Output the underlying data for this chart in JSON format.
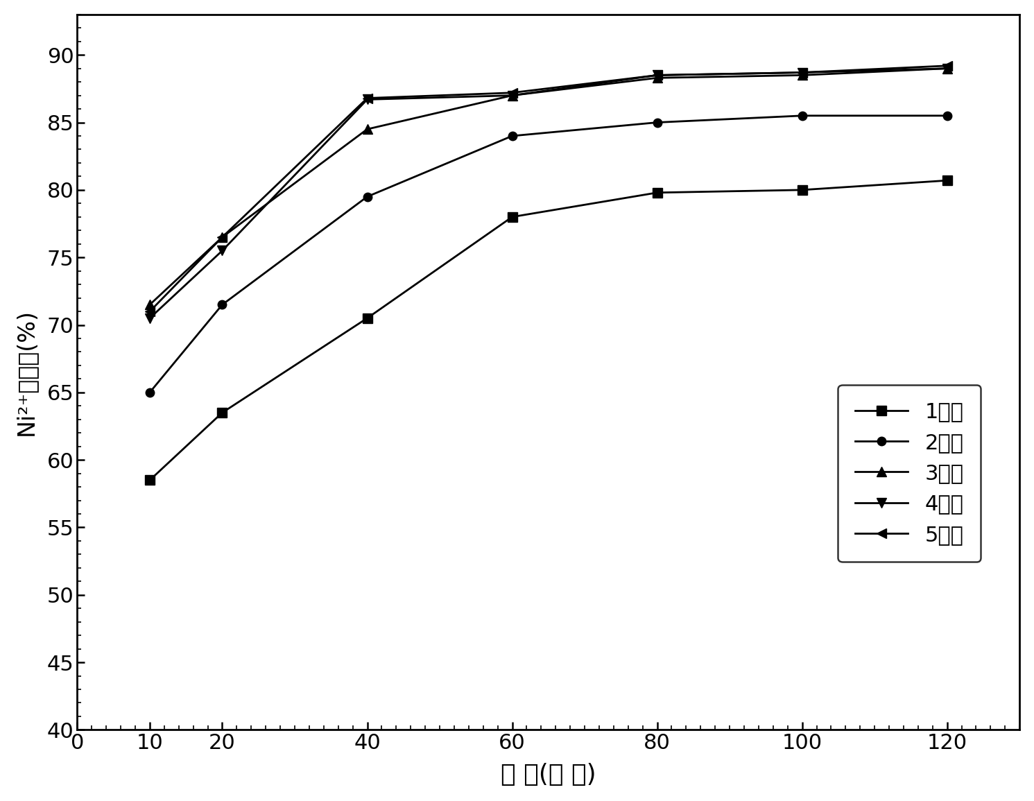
{
  "x": [
    10,
    20,
    40,
    60,
    80,
    100,
    120
  ],
  "series": [
    {
      "label": "1小时",
      "y": [
        58.5,
        63.5,
        70.5,
        78.0,
        79.8,
        80.0,
        80.7
      ],
      "marker": "s",
      "markersize": 10,
      "linewidth": 2.0
    },
    {
      "label": "2小时",
      "y": [
        65.0,
        71.5,
        79.5,
        84.0,
        85.0,
        85.5,
        85.5
      ],
      "marker": "o",
      "markersize": 9,
      "linewidth": 2.0
    },
    {
      "label": "3小时",
      "y": [
        71.5,
        76.5,
        84.5,
        87.0,
        88.3,
        88.5,
        89.0
      ],
      "marker": "^",
      "markersize": 10,
      "linewidth": 2.0
    },
    {
      "label": "4小时",
      "y": [
        70.5,
        75.5,
        86.7,
        87.0,
        88.5,
        88.7,
        89.0
      ],
      "marker": "v",
      "markersize": 10,
      "linewidth": 2.0
    },
    {
      "label": "5小时",
      "y": [
        71.0,
        76.5,
        86.8,
        87.2,
        88.5,
        88.7,
        89.2
      ],
      "marker": "<",
      "markersize": 10,
      "linewidth": 2.0
    }
  ],
  "xlabel": "时 间(分 钟)",
  "ylabel": "Ni²⁺去除率(%)",
  "xlim": [
    0,
    130
  ],
  "ylim": [
    40,
    93
  ],
  "xticks": [
    0,
    10,
    20,
    40,
    60,
    80,
    100,
    120
  ],
  "yticks": [
    40,
    45,
    50,
    55,
    60,
    65,
    70,
    75,
    80,
    85,
    90
  ],
  "color": "black",
  "xlabel_fontsize": 26,
  "ylabel_fontsize": 24,
  "tick_fontsize": 22,
  "legend_fontsize": 22,
  "figwidth": 14.91,
  "figheight": 11.55,
  "dpi": 100
}
